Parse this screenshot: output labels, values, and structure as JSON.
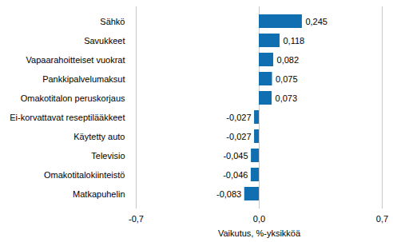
{
  "chart_data": {
    "type": "bar",
    "orientation": "horizontal",
    "categories": [
      "Sähkö",
      "Savukkeet",
      "Vapaarahoitteiset vuokrat",
      "Pankkipalvelumaksut",
      "Omakotitalon peruskorjaus",
      "Ei-korvattavat reseptilääkkeet",
      "Käytetty auto",
      "Televisio",
      "Omakotitalokiinteistö",
      "Matkapuhelin"
    ],
    "values": [
      0.245,
      0.118,
      0.082,
      0.075,
      0.073,
      -0.027,
      -0.027,
      -0.045,
      -0.046,
      -0.083
    ],
    "value_labels": [
      "0,245",
      "0,118",
      "0,082",
      "0,075",
      "0,073",
      "-0,027",
      "-0,027",
      "-0,045",
      "-0,046",
      "-0,083"
    ],
    "data_labels": true,
    "color": "#0f6fb0",
    "x_label": "Vaikutus, %-yksikköä",
    "xlim": [
      -0.7,
      0.7
    ],
    "xticks": [
      {
        "value": -0.7,
        "label": "-0,7"
      },
      {
        "value": 0,
        "label": "0,0"
      },
      {
        "value": 0.7,
        "label": "0,7"
      }
    ],
    "grid": true
  }
}
